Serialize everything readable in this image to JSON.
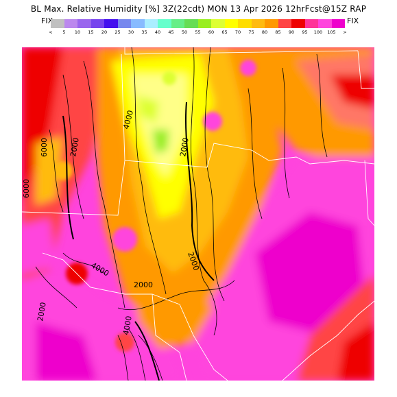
{
  "header": {
    "title": "BL Max. Relative Humidity [%] 3Z(22cdt) MON 13 Apr 2026 12hrFcst@15Z RAP",
    "fix_left": "FIX",
    "fix_right": "FIX"
  },
  "legend": {
    "colors": [
      "#c0c0c0",
      "#bb88ee",
      "#9966ee",
      "#7744ee",
      "#4411ee",
      "#7788ee",
      "#88bbff",
      "#aaeeff",
      "#66ffcc",
      "#66ee88",
      "#66dd55",
      "#99ee22",
      "#ddff33",
      "#ffff00",
      "#ffdd00",
      "#ffbb11",
      "#ff9900",
      "#ff4444",
      "#ee0000",
      "#ff3399",
      "#ff44dd",
      "#ee00cc"
    ],
    "tick_labels": [
      "<",
      "5",
      "10",
      "15",
      "20",
      "25",
      "30",
      "35",
      "40",
      "45",
      "50",
      "55",
      "60",
      "65",
      "70",
      "75",
      "80",
      "85",
      "90",
      "95",
      "100",
      "105",
      ">"
    ]
  },
  "map": {
    "contour_labels": [
      "6000",
      "2000",
      "4000",
      "2000",
      "2000",
      "2000",
      "4000",
      "2000",
      "6000",
      "4000"
    ],
    "fill_colors": {
      "pink": "#ff44dd",
      "magenta": "#ee00cc",
      "red": "#ff4444",
      "deep_red": "#ee0000",
      "orange": "#ff9900",
      "light_orange": "#ffbb11",
      "yellow": "#ffff00",
      "pale_yellow": "#ffff88",
      "green": "#99ee22",
      "lime": "#ddff33",
      "salmon": "#ff7766"
    }
  }
}
